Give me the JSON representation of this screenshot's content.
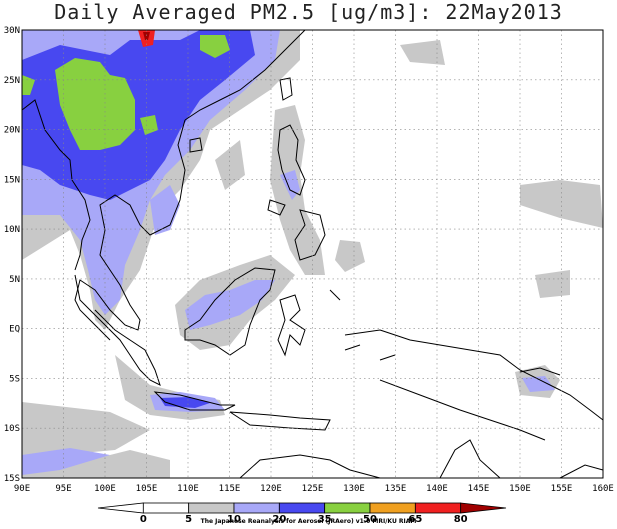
{
  "title": "Daily Averaged PM2.5 [ug/m3]: 22May2013",
  "lat_labels": [
    "30N",
    "25N",
    "20N",
    "15N",
    "10N",
    "5N",
    "EQ",
    "5S",
    "10S",
    "15S"
  ],
  "lon_labels": [
    "90E",
    "95E",
    "100E",
    "105E",
    "110E",
    "115E",
    "120E",
    "125E",
    "130E",
    "135E",
    "140E",
    "145E",
    "150E",
    "155E",
    "160E"
  ],
  "colorbar": {
    "ticks": [
      "0",
      "5",
      "10",
      "20",
      "35",
      "50",
      "65",
      "80"
    ],
    "colors": [
      "#ffffff",
      "#ffffff",
      "#c8c8c8",
      "#a8a8f8",
      "#4848f0",
      "#88d040",
      "#f0a020",
      "#f02020",
      "#a00000"
    ]
  },
  "credit": "The Japanese Reanalysis for Aerosol (JRAero) v1.0 MRI/KU RIAM",
  "palette": {
    "light": "#c8c8c8",
    "lavender": "#a8a8f8",
    "blue": "#4848f0",
    "green": "#88d040",
    "red": "#f02020",
    "darkred": "#a00000"
  }
}
